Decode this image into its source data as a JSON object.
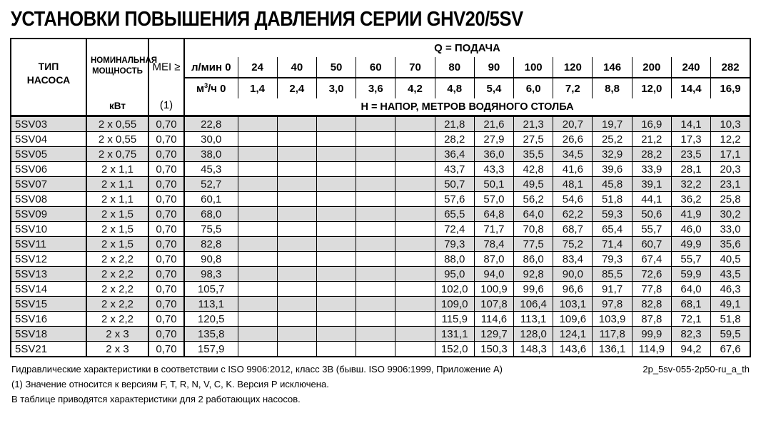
{
  "title": "УСТАНОВКИ ПОВЫШЕНИЯ ДАВЛЕНИЯ СЕРИИ GHV20/5SV",
  "table": {
    "type_header_line1": "ТИП",
    "type_header_line2": "НАСОСА",
    "power_header": "НОМИНАЛЬНАЯ МОЩНОСТЬ",
    "power_unit": "кВт",
    "mei_header": "MEI ≥",
    "mei_note": "(1)",
    "q_header": "Q = ПОДАЧА",
    "h_header": "H = НАПОР, МЕТРОВ ВОДЯНОГО СТОЛБА",
    "lmin_label": "л/мин 0",
    "m3h_label": {
      "prefix": "м",
      "sup": "3",
      "suffix": "/ч 0"
    },
    "flow_lmin": [
      "24",
      "40",
      "50",
      "60",
      "70",
      "80",
      "90",
      "100",
      "120",
      "146",
      "200",
      "240",
      "282"
    ],
    "flow_m3h": [
      "1,4",
      "2,4",
      "3,0",
      "3,6",
      "4,2",
      "4,8",
      "5,4",
      "6,0",
      "7,2",
      "8,8",
      "12,0",
      "14,4",
      "16,9"
    ],
    "rows": [
      {
        "model": "5SV03",
        "power": "2 x 0,55",
        "mei": "0,70",
        "values": [
          "22,8",
          "",
          "",
          "",
          "",
          "",
          "21,8",
          "21,6",
          "21,3",
          "20,7",
          "19,7",
          "16,9",
          "14,1",
          "10,3"
        ]
      },
      {
        "model": "5SV04",
        "power": "2 x 0,55",
        "mei": "0,70",
        "values": [
          "30,0",
          "",
          "",
          "",
          "",
          "",
          "28,2",
          "27,9",
          "27,5",
          "26,6",
          "25,2",
          "21,2",
          "17,3",
          "12,2"
        ]
      },
      {
        "model": "5SV05",
        "power": "2 x 0,75",
        "mei": "0,70",
        "values": [
          "38,0",
          "",
          "",
          "",
          "",
          "",
          "36,4",
          "36,0",
          "35,5",
          "34,5",
          "32,9",
          "28,2",
          "23,5",
          "17,1"
        ]
      },
      {
        "model": "5SV06",
        "power": "2 x 1,1",
        "mei": "0,70",
        "values": [
          "45,3",
          "",
          "",
          "",
          "",
          "",
          "43,7",
          "43,3",
          "42,8",
          "41,6",
          "39,6",
          "33,9",
          "28,1",
          "20,3"
        ]
      },
      {
        "model": "5SV07",
        "power": "2 x 1,1",
        "mei": "0,70",
        "values": [
          "52,7",
          "",
          "",
          "",
          "",
          "",
          "50,7",
          "50,1",
          "49,5",
          "48,1",
          "45,8",
          "39,1",
          "32,2",
          "23,1"
        ]
      },
      {
        "model": "5SV08",
        "power": "2 x 1,1",
        "mei": "0,70",
        "values": [
          "60,1",
          "",
          "",
          "",
          "",
          "",
          "57,6",
          "57,0",
          "56,2",
          "54,6",
          "51,8",
          "44,1",
          "36,2",
          "25,8"
        ]
      },
      {
        "model": "5SV09",
        "power": "2 x 1,5",
        "mei": "0,70",
        "values": [
          "68,0",
          "",
          "",
          "",
          "",
          "",
          "65,5",
          "64,8",
          "64,0",
          "62,2",
          "59,3",
          "50,6",
          "41,9",
          "30,2"
        ]
      },
      {
        "model": "5SV10",
        "power": "2 x 1,5",
        "mei": "0,70",
        "values": [
          "75,5",
          "",
          "",
          "",
          "",
          "",
          "72,4",
          "71,7",
          "70,8",
          "68,7",
          "65,4",
          "55,7",
          "46,0",
          "33,0"
        ]
      },
      {
        "model": "5SV11",
        "power": "2 x 1,5",
        "mei": "0,70",
        "values": [
          "82,8",
          "",
          "",
          "",
          "",
          "",
          "79,3",
          "78,4",
          "77,5",
          "75,2",
          "71,4",
          "60,7",
          "49,9",
          "35,6"
        ]
      },
      {
        "model": "5SV12",
        "power": "2 x 2,2",
        "mei": "0,70",
        "values": [
          "90,8",
          "",
          "",
          "",
          "",
          "",
          "88,0",
          "87,0",
          "86,0",
          "83,4",
          "79,3",
          "67,4",
          "55,7",
          "40,5"
        ]
      },
      {
        "model": "5SV13",
        "power": "2 x 2,2",
        "mei": "0,70",
        "values": [
          "98,3",
          "",
          "",
          "",
          "",
          "",
          "95,0",
          "94,0",
          "92,8",
          "90,0",
          "85,5",
          "72,6",
          "59,9",
          "43,5"
        ]
      },
      {
        "model": "5SV14",
        "power": "2 x 2,2",
        "mei": "0,70",
        "values": [
          "105,7",
          "",
          "",
          "",
          "",
          "",
          "102,0",
          "100,9",
          "99,6",
          "96,6",
          "91,7",
          "77,8",
          "64,0",
          "46,3"
        ]
      },
      {
        "model": "5SV15",
        "power": "2 x 2,2",
        "mei": "0,70",
        "values": [
          "113,1",
          "",
          "",
          "",
          "",
          "",
          "109,0",
          "107,8",
          "106,4",
          "103,1",
          "97,8",
          "82,8",
          "68,1",
          "49,1"
        ]
      },
      {
        "model": "5SV16",
        "power": "2 x 2,2",
        "mei": "0,70",
        "values": [
          "120,5",
          "",
          "",
          "",
          "",
          "",
          "115,9",
          "114,6",
          "113,1",
          "109,6",
          "103,9",
          "87,8",
          "72,1",
          "51,8"
        ]
      },
      {
        "model": "5SV18",
        "power": "2 x 3",
        "mei": "0,70",
        "values": [
          "135,8",
          "",
          "",
          "",
          "",
          "",
          "131,1",
          "129,7",
          "128,0",
          "124,1",
          "117,8",
          "99,9",
          "82,3",
          "59,5"
        ]
      },
      {
        "model": "5SV21",
        "power": "2 x 3",
        "mei": "0,70",
        "values": [
          "157,9",
          "",
          "",
          "",
          "",
          "",
          "152,0",
          "150,3",
          "148,3",
          "143,6",
          "136,1",
          "114,9",
          "94,2",
          "67,6"
        ]
      }
    ]
  },
  "footnotes": [
    "Гидравлические характеристики в соответствии с ISO 9906:2012, класс 3В (бывш. ISO 9906:1999, Приложение А)",
    "(1) Значение относится к версиям F, T, R, N, V, C, K. Версия Р исключена.",
    "В таблице приводятся характеристики для 2 работающих насосов."
  ],
  "doc_id": "2p_5sv-055-2p50-ru_a_th",
  "colors": {
    "row_alt_bg": "#dcdcdc",
    "border": "#000000",
    "text": "#111111"
  }
}
